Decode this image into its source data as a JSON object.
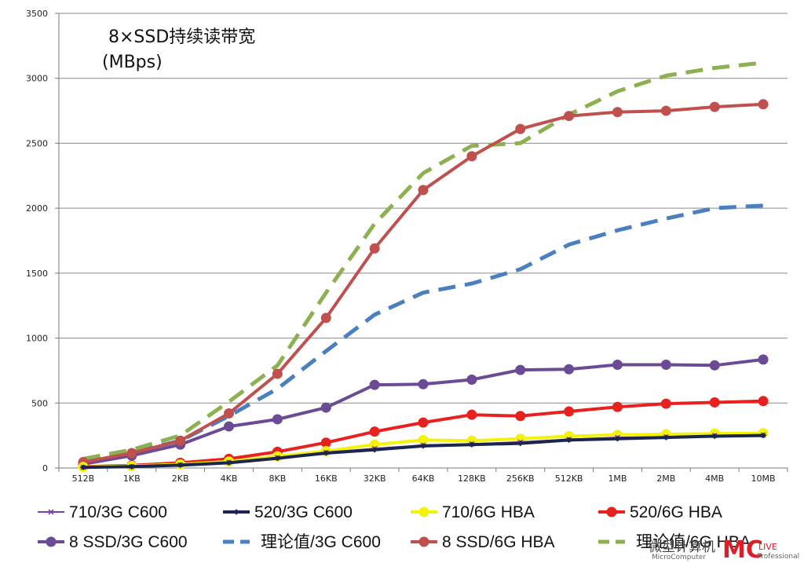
{
  "chart_data": {
    "type": "line",
    "title": "8×SSD持续读带宽",
    "subtitle": "(MBps)",
    "xlabel": "",
    "ylabel": "",
    "categories": [
      "512B",
      "1KB",
      "2KB",
      "4KB",
      "8KB",
      "16KB",
      "32KB",
      "64KB",
      "128KB",
      "256KB",
      "512KB",
      "1MB",
      "2MB",
      "4MB",
      "10MB"
    ],
    "ylim": [
      0,
      3500
    ],
    "yticks": [
      0,
      500,
      1000,
      1500,
      2000,
      2500,
      3000,
      3500
    ],
    "grid": "horizontal",
    "legend_position": "bottom",
    "series": [
      {
        "name": "710/3G C600",
        "color": "#7b3fa0",
        "dash": false,
        "marker": "star",
        "values": [
          5,
          12,
          25,
          45,
          80,
          120,
          150,
          175,
          185,
          200,
          220,
          235,
          240,
          250,
          255
        ]
      },
      {
        "name": "520/3G C600",
        "color": "#1a2550",
        "dash": false,
        "marker": "diamond",
        "values": [
          5,
          10,
          22,
          40,
          75,
          115,
          140,
          170,
          180,
          190,
          215,
          225,
          235,
          245,
          250
        ]
      },
      {
        "name": "710/6G HBA",
        "color": "#f2f20a",
        "dash": false,
        "marker": "circle",
        "values": [
          8,
          15,
          28,
          50,
          90,
          130,
          180,
          215,
          210,
          225,
          245,
          255,
          260,
          265,
          268
        ]
      },
      {
        "name": "520/6G HBA",
        "color": "#e8201e",
        "dash": false,
        "marker": "circle",
        "values": [
          10,
          20,
          40,
          70,
          125,
          195,
          280,
          350,
          410,
          400,
          435,
          470,
          495,
          505,
          515
        ]
      },
      {
        "name": "8 SSD/3G C600",
        "color": "#6b4a96",
        "dash": false,
        "marker": "circle",
        "values": [
          30,
          95,
          180,
          320,
          375,
          465,
          640,
          645,
          680,
          755,
          760,
          795,
          795,
          790,
          835
        ]
      },
      {
        "name": "理论值/3G C600",
        "color": "#4a7fc0",
        "dash": true,
        "marker": "none",
        "values": [
          60,
          120,
          210,
          400,
          610,
          900,
          1180,
          1350,
          1420,
          1530,
          1720,
          1830,
          1920,
          2000,
          2020
        ]
      },
      {
        "name": "8 SSD/6G HBA",
        "color": "#c0504d",
        "dash": false,
        "marker": "circle",
        "values": [
          45,
          115,
          210,
          420,
          725,
          1155,
          1690,
          2140,
          2400,
          2610,
          2710,
          2740,
          2750,
          2780,
          2800
        ]
      },
      {
        "name": "理论值/6G HBA",
        "color": "#8db051",
        "dash": true,
        "marker": "none",
        "values": [
          70,
          140,
          250,
          510,
          790,
          1350,
          1880,
          2270,
          2480,
          2500,
          2720,
          2900,
          3020,
          3080,
          3120
        ]
      }
    ]
  },
  "watermark": {
    "main": "微型计算机",
    "sub": "MicroComputer",
    "logo": "MC",
    "logo_suffix": "LIVE",
    "logo_sub": "Professional"
  }
}
